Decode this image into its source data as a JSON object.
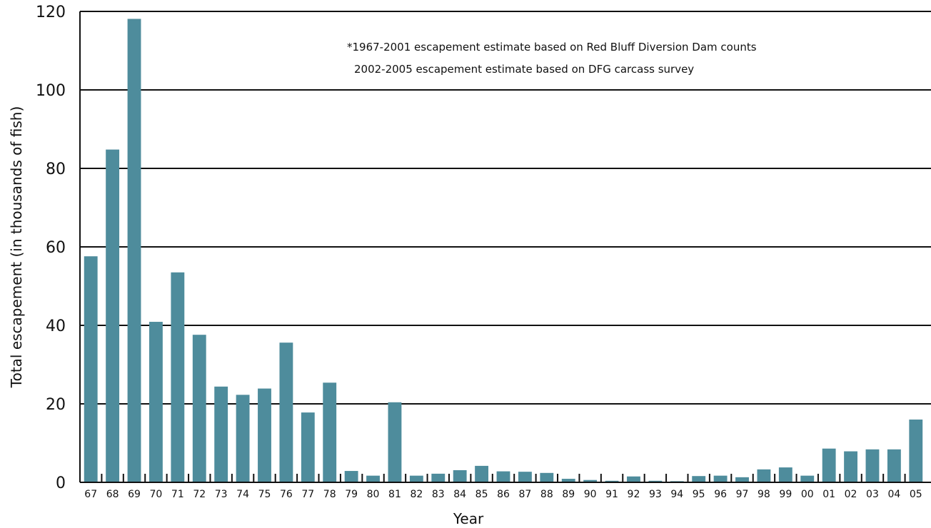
{
  "chart_data": {
    "type": "bar",
    "xlabel": "Year",
    "ylabel": "Total escapement (in thousands of fish)",
    "ylim": [
      0,
      120
    ],
    "yticks": [
      "0",
      "20",
      "40",
      "60",
      "80",
      "100",
      "120"
    ],
    "grid": true,
    "bar_color": "#4e8c9c",
    "annotations": [
      "*1967-2001 escapement estimate based on Red Bluff Diversion Dam counts",
      "2002-2005 escapement estimate based on DFG carcass survey"
    ],
    "categories": [
      "67",
      "68",
      "69",
      "70",
      "71",
      "72",
      "73",
      "74",
      "75",
      "76",
      "77",
      "78",
      "79",
      "80",
      "81",
      "82",
      "83",
      "84",
      "85",
      "86",
      "87",
      "88",
      "89",
      "90",
      "91",
      "92",
      "93",
      "94",
      "95",
      "96",
      "97",
      "98",
      "99",
      "00",
      "01",
      "02",
      "03",
      "04",
      "05"
    ],
    "values": [
      57.6,
      84.8,
      118.1,
      40.9,
      53.5,
      37.6,
      24.4,
      22.3,
      23.9,
      35.6,
      17.8,
      25.4,
      2.9,
      1.7,
      20.4,
      1.7,
      2.2,
      3.1,
      4.2,
      2.8,
      2.7,
      2.4,
      0.9,
      0.6,
      0.4,
      1.5,
      0.4,
      0.3,
      1.6,
      1.7,
      1.3,
      3.3,
      3.8,
      1.7,
      8.6,
      7.9,
      8.4,
      8.4,
      16.0
    ]
  }
}
